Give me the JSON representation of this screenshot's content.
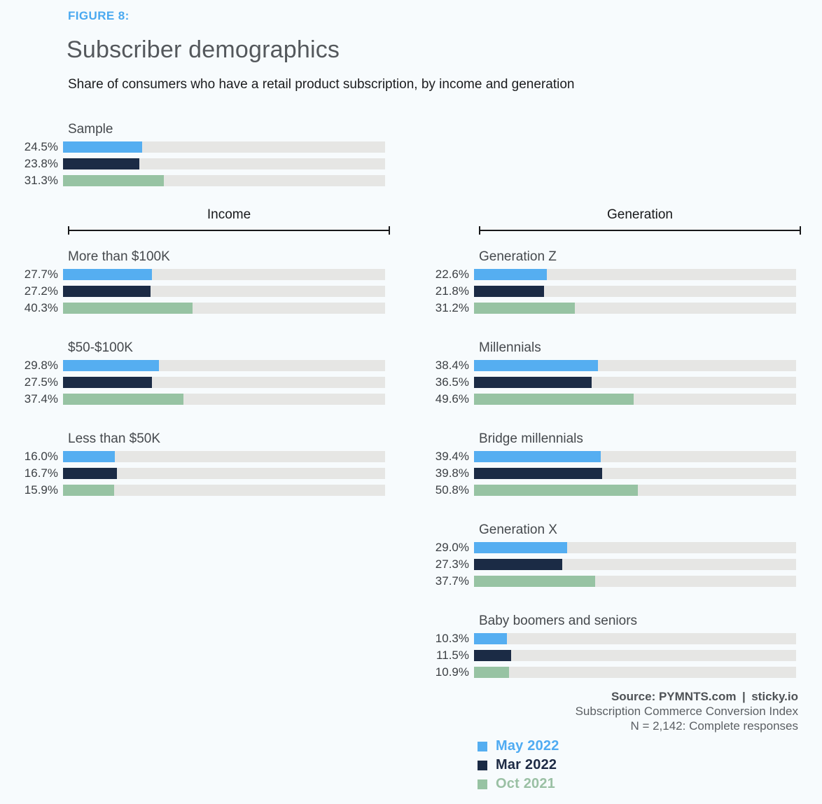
{
  "figure_label": "FIGURE 8:",
  "title": "Subscriber demographics",
  "subtitle": "Share of consumers who have a retail product subscription, by income and generation",
  "chart_data": {
    "type": "bar",
    "orientation": "horizontal",
    "unit": "%",
    "xlim": [
      0,
      100
    ],
    "grid": false,
    "legend_position": "bottom-right",
    "series_names": [
      "May 2022",
      "Mar 2022",
      "Oct 2021"
    ],
    "series_colors": [
      "#55aef1",
      "#1b2b45",
      "#97c3a3"
    ],
    "track_color": "#e6e6e4",
    "sample": {
      "label": "Sample",
      "values": [
        24.5,
        23.8,
        31.3
      ]
    },
    "columns": [
      {
        "header": "Income",
        "groups": [
          {
            "label": "More than $100K",
            "values": [
              27.7,
              27.2,
              40.3
            ]
          },
          {
            "label": "$50-$100K",
            "values": [
              29.8,
              27.5,
              37.4
            ]
          },
          {
            "label": "Less than $50K",
            "values": [
              16.0,
              16.7,
              15.9
            ]
          }
        ]
      },
      {
        "header": "Generation",
        "groups": [
          {
            "label": "Generation Z",
            "values": [
              22.6,
              21.8,
              31.2
            ]
          },
          {
            "label": "Millennials",
            "values": [
              38.4,
              36.5,
              49.6
            ]
          },
          {
            "label": "Bridge millennials",
            "values": [
              39.4,
              39.8,
              50.8
            ]
          },
          {
            "label": "Generation X",
            "values": [
              29.0,
              27.3,
              37.7
            ]
          },
          {
            "label": "Baby boomers and seniors",
            "values": [
              10.3,
              11.5,
              10.9
            ]
          }
        ]
      }
    ]
  },
  "source": {
    "line1": "Source: PYMNTS.com | sticky.io",
    "line2": "Subscription Commerce Conversion Index",
    "line3": "N = 2,142: Complete responses"
  },
  "legend": [
    {
      "label": "May 2022",
      "color": "#55aef1",
      "text_color": "#4fabf2"
    },
    {
      "label": "Mar 2022",
      "color": "#1b2b45",
      "text_color": "#1e2b45"
    },
    {
      "label": "Oct 2021",
      "color": "#97c3a3",
      "text_color": "#9ac0a4"
    }
  ]
}
